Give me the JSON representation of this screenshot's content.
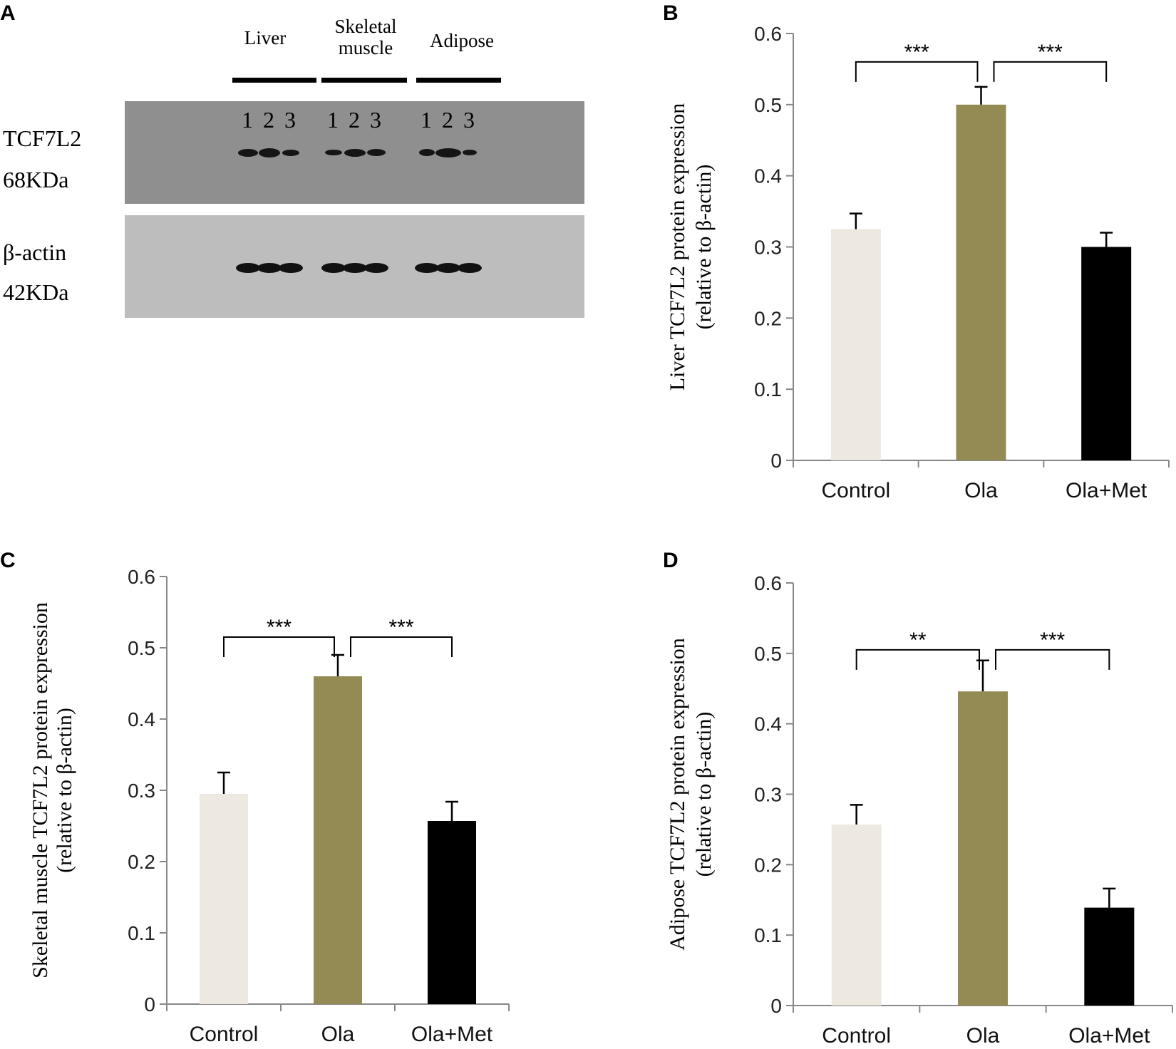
{
  "panels": {
    "a": "A",
    "b": "B",
    "c": "C",
    "d": "D"
  },
  "western_blot": {
    "tissues": [
      "Liver",
      "Skeletal muscle",
      "Adipose"
    ],
    "lanes": [
      "1",
      "2",
      "3",
      "1",
      "2",
      "3",
      "1",
      "2",
      "3"
    ],
    "targets": [
      {
        "name": "TCF7L2",
        "size": "68KDa"
      },
      {
        "name": "β-actin",
        "size": "42KDa"
      }
    ]
  },
  "colors": {
    "control": "#ede9e1",
    "ola": "#938b53",
    "ola_met": "#000000"
  },
  "chart_data": [
    {
      "type": "bar",
      "panel": "B",
      "categories": [
        "Control",
        "Ola",
        "Ola+Met"
      ],
      "values": [
        0.325,
        0.5,
        0.3
      ],
      "errors": [
        0.022,
        0.025,
        0.02
      ],
      "ylim": [
        0,
        0.6
      ],
      "yticks": [
        "0",
        "0.1",
        "0.2",
        "0.3",
        "0.4",
        "0.5",
        "0.6"
      ],
      "ylabel_line1": "Liver TCF7L2 protein expression",
      "ylabel_line2": "(relative to β-actin)",
      "significance": [
        {
          "from": 0,
          "to": 1,
          "label": "***",
          "y": 0.56
        },
        {
          "from": 1,
          "to": 2,
          "label": "***",
          "y": 0.56
        }
      ]
    },
    {
      "type": "bar",
      "panel": "C",
      "categories": [
        "Control",
        "Ola",
        "Ola+Met"
      ],
      "values": [
        0.295,
        0.46,
        0.257
      ],
      "errors": [
        0.03,
        0.03,
        0.027
      ],
      "ylim": [
        0,
        0.6
      ],
      "yticks": [
        "0",
        "0.1",
        "0.2",
        "0.3",
        "0.4",
        "0.5",
        "0.6"
      ],
      "ylabel_line1": "Skeletal muscle TCF7L2 protein  expression",
      "ylabel_line2": "(relative to β-actin)",
      "significance": [
        {
          "from": 0,
          "to": 1,
          "label": "***",
          "y": 0.515
        },
        {
          "from": 1,
          "to": 2,
          "label": "***",
          "y": 0.515
        }
      ]
    },
    {
      "type": "bar",
      "panel": "D",
      "categories": [
        "Control",
        "Ola",
        "Ola+Met"
      ],
      "values": [
        0.257,
        0.446,
        0.139
      ],
      "errors": [
        0.028,
        0.044,
        0.027
      ],
      "ylim": [
        0,
        0.6
      ],
      "yticks": [
        "0",
        "0.1",
        "0.2",
        "0.3",
        "0.4",
        "0.5",
        "0.6"
      ],
      "ylabel_line1": "Adipose TCF7L2 protein expression",
      "ylabel_line2": "(relative to β-actin)",
      "significance": [
        {
          "from": 0,
          "to": 1,
          "label": "**",
          "y": 0.505
        },
        {
          "from": 1,
          "to": 2,
          "label": "***",
          "y": 0.505
        }
      ]
    }
  ]
}
